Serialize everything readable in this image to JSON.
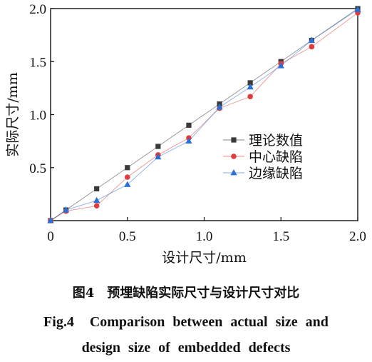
{
  "chart_data": {
    "type": "line",
    "xlabel": "设计尺寸/mm",
    "ylabel": "实际尺寸/mm",
    "xlim": [
      0,
      2.0
    ],
    "ylim": [
      0,
      2.0
    ],
    "x_ticks": [
      "0",
      "0.5",
      "1.0",
      "1.5",
      "2.0"
    ],
    "y_ticks": [
      "0.5",
      "1.0",
      "1.5",
      "2.0"
    ],
    "grid": false,
    "legend_position": "center-right",
    "series": [
      {
        "name": "理论数值",
        "marker": "square",
        "color": "#3a3a3a",
        "x": [
          0,
          0.1,
          0.3,
          0.5,
          0.7,
          0.9,
          1.1,
          1.3,
          1.5,
          1.7,
          2.0
        ],
        "y": [
          0,
          0.1,
          0.3,
          0.5,
          0.7,
          0.9,
          1.1,
          1.3,
          1.5,
          1.7,
          2.0
        ]
      },
      {
        "name": "中心缺陷",
        "marker": "circle",
        "color": "#e03c3c",
        "x": [
          0,
          0.1,
          0.3,
          0.5,
          0.7,
          0.9,
          1.1,
          1.3,
          1.5,
          1.7,
          2.0
        ],
        "y": [
          0,
          0.09,
          0.14,
          0.41,
          0.62,
          0.78,
          1.06,
          1.17,
          1.48,
          1.64,
          1.96
        ]
      },
      {
        "name": "边缘缺陷",
        "marker": "triangle",
        "color": "#2a6fd6",
        "x": [
          0,
          0.1,
          0.3,
          0.5,
          0.7,
          0.9,
          1.1,
          1.3,
          1.5,
          1.7,
          2.0
        ],
        "y": [
          0,
          0.1,
          0.19,
          0.34,
          0.6,
          0.75,
          1.07,
          1.26,
          1.46,
          1.7,
          1.99
        ]
      }
    ]
  },
  "caption": {
    "cn_fig": "图4",
    "cn_text": "预埋缺陷实际尺寸与设计尺寸对比",
    "en_fig": "Fig.4",
    "en_line1": "Comparison between actual size and",
    "en_line2": "design size of embedded defects"
  }
}
